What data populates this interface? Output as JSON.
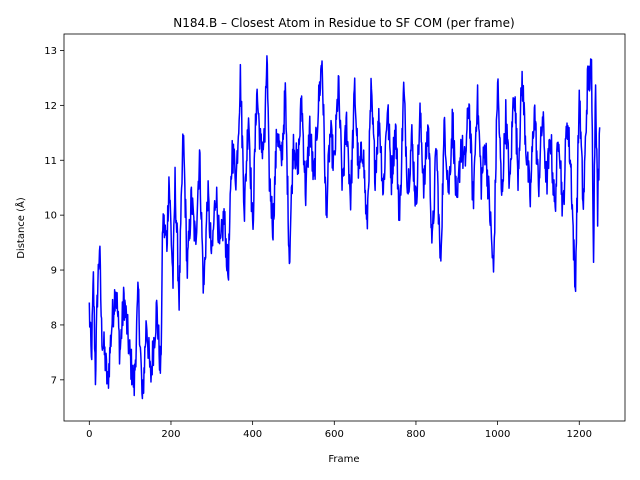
{
  "chart_data": {
    "type": "line",
    "title": "N184.B – Closest Atom in Residue to SF COM (per frame)",
    "xlabel": "Frame",
    "ylabel": "Distance (Å)",
    "xlim": [
      -62,
      1312
    ],
    "ylim": [
      6.25,
      13.3
    ],
    "xticks": [
      0,
      200,
      400,
      600,
      800,
      1000,
      1200
    ],
    "yticks": [
      7,
      8,
      9,
      10,
      11,
      12,
      13
    ],
    "grid": false,
    "legend": "none",
    "series": [
      {
        "color": "#0000ff",
        "frame_count": 1250,
        "anchors": [
          [
            0,
            8.3
          ],
          [
            5,
            7.3
          ],
          [
            10,
            8.8
          ],
          [
            15,
            7.1
          ],
          [
            20,
            8.6
          ],
          [
            25,
            9.45
          ],
          [
            30,
            7.9
          ],
          [
            40,
            7.3
          ],
          [
            45,
            6.9
          ],
          [
            55,
            8.0
          ],
          [
            65,
            8.75
          ],
          [
            75,
            7.5
          ],
          [
            85,
            8.5
          ],
          [
            100,
            7.4
          ],
          [
            110,
            6.9
          ],
          [
            120,
            8.6
          ],
          [
            130,
            6.55
          ],
          [
            140,
            8.1
          ],
          [
            150,
            7.0
          ],
          [
            165,
            8.3
          ],
          [
            175,
            7.1
          ],
          [
            180,
            9.9
          ],
          [
            190,
            9.5
          ],
          [
            195,
            10.7
          ],
          [
            205,
            8.8
          ],
          [
            210,
            10.6
          ],
          [
            220,
            8.5
          ],
          [
            230,
            11.5
          ],
          [
            240,
            9.0
          ],
          [
            250,
            10.3
          ],
          [
            260,
            9.5
          ],
          [
            270,
            11.1
          ],
          [
            280,
            8.6
          ],
          [
            290,
            10.4
          ],
          [
            300,
            9.2
          ],
          [
            310,
            10.5
          ],
          [
            320,
            9.3
          ],
          [
            330,
            10.0
          ],
          [
            340,
            8.9
          ],
          [
            350,
            11.2
          ],
          [
            360,
            10.7
          ],
          [
            370,
            12.5
          ],
          [
            380,
            10.1
          ],
          [
            390,
            11.9
          ],
          [
            400,
            9.7
          ],
          [
            410,
            12.3
          ],
          [
            420,
            11.2
          ],
          [
            430,
            11.4
          ],
          [
            435,
            12.95
          ],
          [
            440,
            10.8
          ],
          [
            450,
            9.8
          ],
          [
            460,
            11.6
          ],
          [
            470,
            10.9
          ],
          [
            480,
            12.2
          ],
          [
            490,
            9.2
          ],
          [
            500,
            11.4
          ],
          [
            510,
            10.8
          ],
          [
            520,
            12.1
          ],
          [
            530,
            10.4
          ],
          [
            540,
            11.6
          ],
          [
            550,
            10.6
          ],
          [
            560,
            11.9
          ],
          [
            570,
            12.85
          ],
          [
            580,
            10.0
          ],
          [
            590,
            11.5
          ],
          [
            600,
            10.9
          ],
          [
            610,
            12.4
          ],
          [
            620,
            10.5
          ],
          [
            630,
            11.7
          ],
          [
            640,
            10.3
          ],
          [
            650,
            12.3
          ],
          [
            660,
            10.7
          ],
          [
            670,
            11.3
          ],
          [
            680,
            9.7
          ],
          [
            690,
            12.2
          ],
          [
            700,
            10.8
          ],
          [
            710,
            11.8
          ],
          [
            720,
            10.4
          ],
          [
            730,
            12.0
          ],
          [
            740,
            10.7
          ],
          [
            750,
            11.6
          ],
          [
            760,
            9.9
          ],
          [
            770,
            12.3
          ],
          [
            780,
            10.5
          ],
          [
            790,
            11.4
          ],
          [
            800,
            10.2
          ],
          [
            810,
            11.8
          ],
          [
            820,
            10.5
          ],
          [
            830,
            11.7
          ],
          [
            840,
            9.4
          ],
          [
            850,
            11.3
          ],
          [
            860,
            9.05
          ],
          [
            870,
            11.7
          ],
          [
            880,
            10.4
          ],
          [
            890,
            11.8
          ],
          [
            900,
            10.0
          ],
          [
            910,
            11.3
          ],
          [
            920,
            10.9
          ],
          [
            930,
            12.1
          ],
          [
            940,
            10.2
          ],
          [
            950,
            12.2
          ],
          [
            960,
            10.6
          ],
          [
            970,
            11.3
          ],
          [
            980,
            10.2
          ],
          [
            990,
            8.9
          ],
          [
            1000,
            12.5
          ],
          [
            1010,
            10.3
          ],
          [
            1020,
            11.8
          ],
          [
            1030,
            10.5
          ],
          [
            1040,
            12.4
          ],
          [
            1050,
            10.8
          ],
          [
            1060,
            12.5
          ],
          [
            1070,
            11.2
          ],
          [
            1080,
            10.3
          ],
          [
            1090,
            12.0
          ],
          [
            1100,
            10.5
          ],
          [
            1110,
            11.8
          ],
          [
            1120,
            10.6
          ],
          [
            1130,
            11.4
          ],
          [
            1140,
            10.1
          ],
          [
            1150,
            11.6
          ],
          [
            1160,
            10.0
          ],
          [
            1170,
            11.8
          ],
          [
            1180,
            10.8
          ],
          [
            1190,
            8.6
          ],
          [
            1200,
            12.2
          ],
          [
            1210,
            10.1
          ],
          [
            1220,
            12.4
          ],
          [
            1230,
            12.6
          ],
          [
            1235,
            9.45
          ],
          [
            1240,
            12.6
          ],
          [
            1245,
            10.0
          ],
          [
            1250,
            11.6
          ]
        ]
      }
    ]
  }
}
